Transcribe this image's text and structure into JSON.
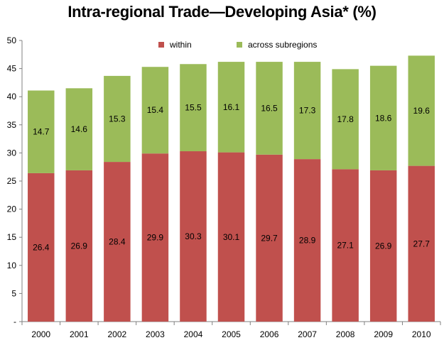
{
  "chart_data": {
    "type": "bar",
    "stacked": true,
    "title": "Intra-regional Trade—Developing Asia* (%)",
    "categories": [
      "2000",
      "2001",
      "2002",
      "2003",
      "2004",
      "2005",
      "2006",
      "2007",
      "2008",
      "2009",
      "2010"
    ],
    "series": [
      {
        "name": "within",
        "color": "#c0504d",
        "values": [
          26.4,
          26.9,
          28.4,
          29.9,
          30.3,
          30.1,
          29.7,
          28.9,
          27.1,
          26.9,
          27.7
        ]
      },
      {
        "name": "across subregions",
        "color": "#9bbb59",
        "values": [
          14.7,
          14.6,
          15.3,
          15.4,
          15.5,
          16.1,
          16.5,
          17.3,
          17.8,
          18.6,
          19.6
        ]
      }
    ],
    "ylim": [
      0,
      50
    ],
    "yticks": [
      "-",
      "5",
      "10",
      "15",
      "20",
      "25",
      "30",
      "35",
      "40",
      "45",
      "50"
    ],
    "grid": false,
    "legend_position": "top-center",
    "data_labels": true
  }
}
